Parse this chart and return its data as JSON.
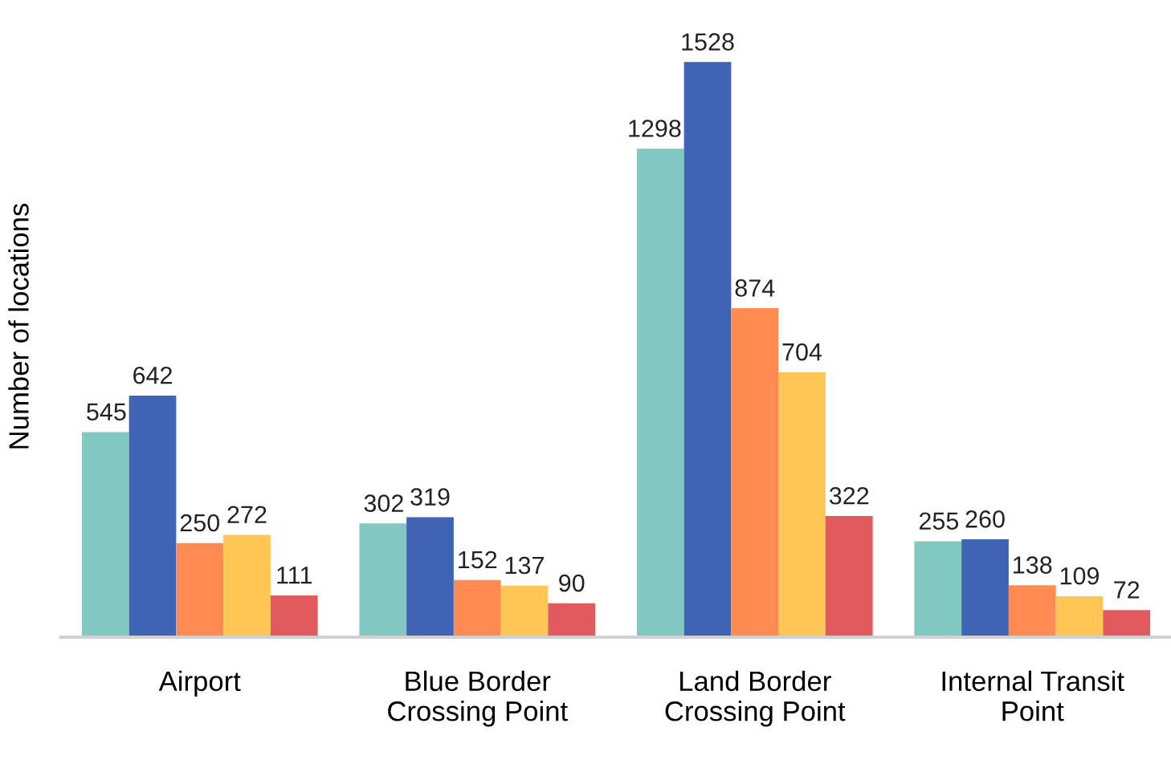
{
  "chart_data": {
    "type": "bar",
    "ylabel": "Number of locations",
    "categories": [
      "Airport",
      "Blue Border Crossing Point",
      "Land Border Crossing Point",
      "Internal Transit Point"
    ],
    "series": [
      {
        "color": "#82c8c2",
        "values": [
          545,
          302,
          1298,
          255
        ]
      },
      {
        "color": "#3f63b5",
        "values": [
          642,
          319,
          1528,
          260
        ]
      },
      {
        "color": "#ff8b52",
        "values": [
          250,
          152,
          874,
          138
        ]
      },
      {
        "color": "#ffc655",
        "values": [
          272,
          137,
          704,
          109
        ]
      },
      {
        "color": "#e05a5e",
        "values": [
          111,
          90,
          322,
          72
        ]
      }
    ],
    "data_labels": true,
    "tick_labels": "x"
  }
}
